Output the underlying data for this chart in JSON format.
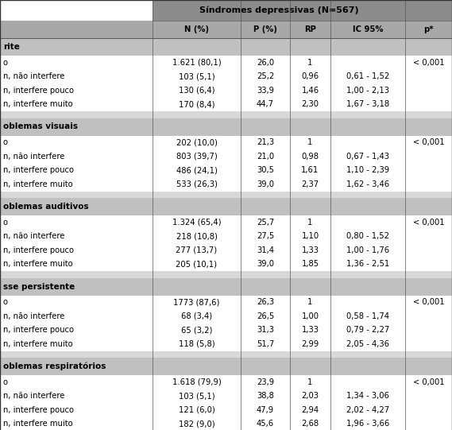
{
  "header_main": "Síndromes depressivas (N=567)",
  "col_headers": [
    "N (%)",
    "P (%)",
    "RP",
    "IC 95%",
    "p*"
  ],
  "sections": [
    {
      "title": "rite",
      "rows": [
        {
          "label": "o",
          "n": "1.621 (80,1)",
          "p": "26,0",
          "rp": "1",
          "ic": "",
          "pval": "< 0,001"
        },
        {
          "label": "n, não interfere",
          "n": "103 (5,1)",
          "p": "25,2",
          "rp": "0,96",
          "ic": "0,61 - 1,52",
          "pval": ""
        },
        {
          "label": "n, interfere pouco",
          "n": "130 (6,4)",
          "p": "33,9",
          "rp": "1,46",
          "ic": "1,00 - 2,13",
          "pval": ""
        },
        {
          "label": "n, interfere muito",
          "n": "170 (8,4)",
          "p": "44,7",
          "rp": "2,30",
          "ic": "1,67 - 3,18",
          "pval": ""
        }
      ]
    },
    {
      "title": "oblemas visuais",
      "rows": [
        {
          "label": "o",
          "n": "202 (10,0)",
          "p": "21,3",
          "rp": "1",
          "ic": "",
          "pval": "< 0,001"
        },
        {
          "label": "n, não interfere",
          "n": "803 (39,7)",
          "p": "21,0",
          "rp": "0,98",
          "ic": "0,67 - 1,43",
          "pval": ""
        },
        {
          "label": "n, interfere pouco",
          "n": "486 (24,1)",
          "p": "30,5",
          "rp": "1,61",
          "ic": "1,10 - 2,39",
          "pval": ""
        },
        {
          "label": "n, interfere muito",
          "n": "533 (26,3)",
          "p": "39,0",
          "rp": "2,37",
          "ic": "1,62 - 3,46",
          "pval": ""
        }
      ]
    },
    {
      "title": "oblemas auditivos",
      "rows": [
        {
          "label": "o",
          "n": "1.324 (65,4)",
          "p": "25,7",
          "rp": "1",
          "ic": "",
          "pval": "< 0,001"
        },
        {
          "label": "n, não interfere",
          "n": "218 (10,8)",
          "p": "27,5",
          "rp": "1,10",
          "ic": "0,80 - 1,52",
          "pval": ""
        },
        {
          "label": "n, interfere pouco",
          "n": "277 (13,7)",
          "p": "31,4",
          "rp": "1,33",
          "ic": "1,00 - 1,76",
          "pval": ""
        },
        {
          "label": "n, interfere muito",
          "n": "205 (10,1)",
          "p": "39,0",
          "rp": "1,85",
          "ic": "1,36 - 2,51",
          "pval": ""
        }
      ]
    },
    {
      "title": "sse persistente",
      "rows": [
        {
          "label": "o",
          "n": "1773 (87,6)",
          "p": "26,3",
          "rp": "1",
          "ic": "",
          "pval": "< 0,001"
        },
        {
          "label": "n, não interfere",
          "n": "68 (3,4)",
          "p": "26,5",
          "rp": "1,00",
          "ic": "0,58 - 1,74",
          "pval": ""
        },
        {
          "label": "n, interfere pouco",
          "n": "65 (3,2)",
          "p": "31,3",
          "rp": "1,33",
          "ic": "0,79 - 2,27",
          "pval": ""
        },
        {
          "label": "n, interfere muito",
          "n": "118 (5,8)",
          "p": "51,7",
          "rp": "2,99",
          "ic": "2,05 - 4,36",
          "pval": ""
        }
      ]
    },
    {
      "title": "oblemas respiratórios",
      "rows": [
        {
          "label": "o",
          "n": "1.618 (79,9)",
          "p": "23,9",
          "rp": "1",
          "ic": "",
          "pval": "< 0,001"
        },
        {
          "label": "n, não interfere",
          "n": "103 (5,1)",
          "p": "38,8",
          "rp": "2,03",
          "ic": "1,34 - 3,06",
          "pval": ""
        },
        {
          "label": "n, interfere pouco",
          "n": "121 (6,0)",
          "p": "47,9",
          "rp": "2,94",
          "ic": "2,02 - 4,27",
          "pval": ""
        },
        {
          "label": "n, interfere muito",
          "n": "182 (9,0)",
          "p": "45,6",
          "rp": "2,68",
          "ic": "1,96 - 3,66",
          "pval": ""
        }
      ]
    }
  ],
  "color_header_dark": "#8c8c8c",
  "color_header_mid": "#a8a8a8",
  "color_section_title": "#c0c0c0",
  "color_spacer": "#d8d8d8",
  "color_white": "#ffffff",
  "font_size": 7.2,
  "font_size_header": 8.0,
  "font_size_section": 7.5
}
